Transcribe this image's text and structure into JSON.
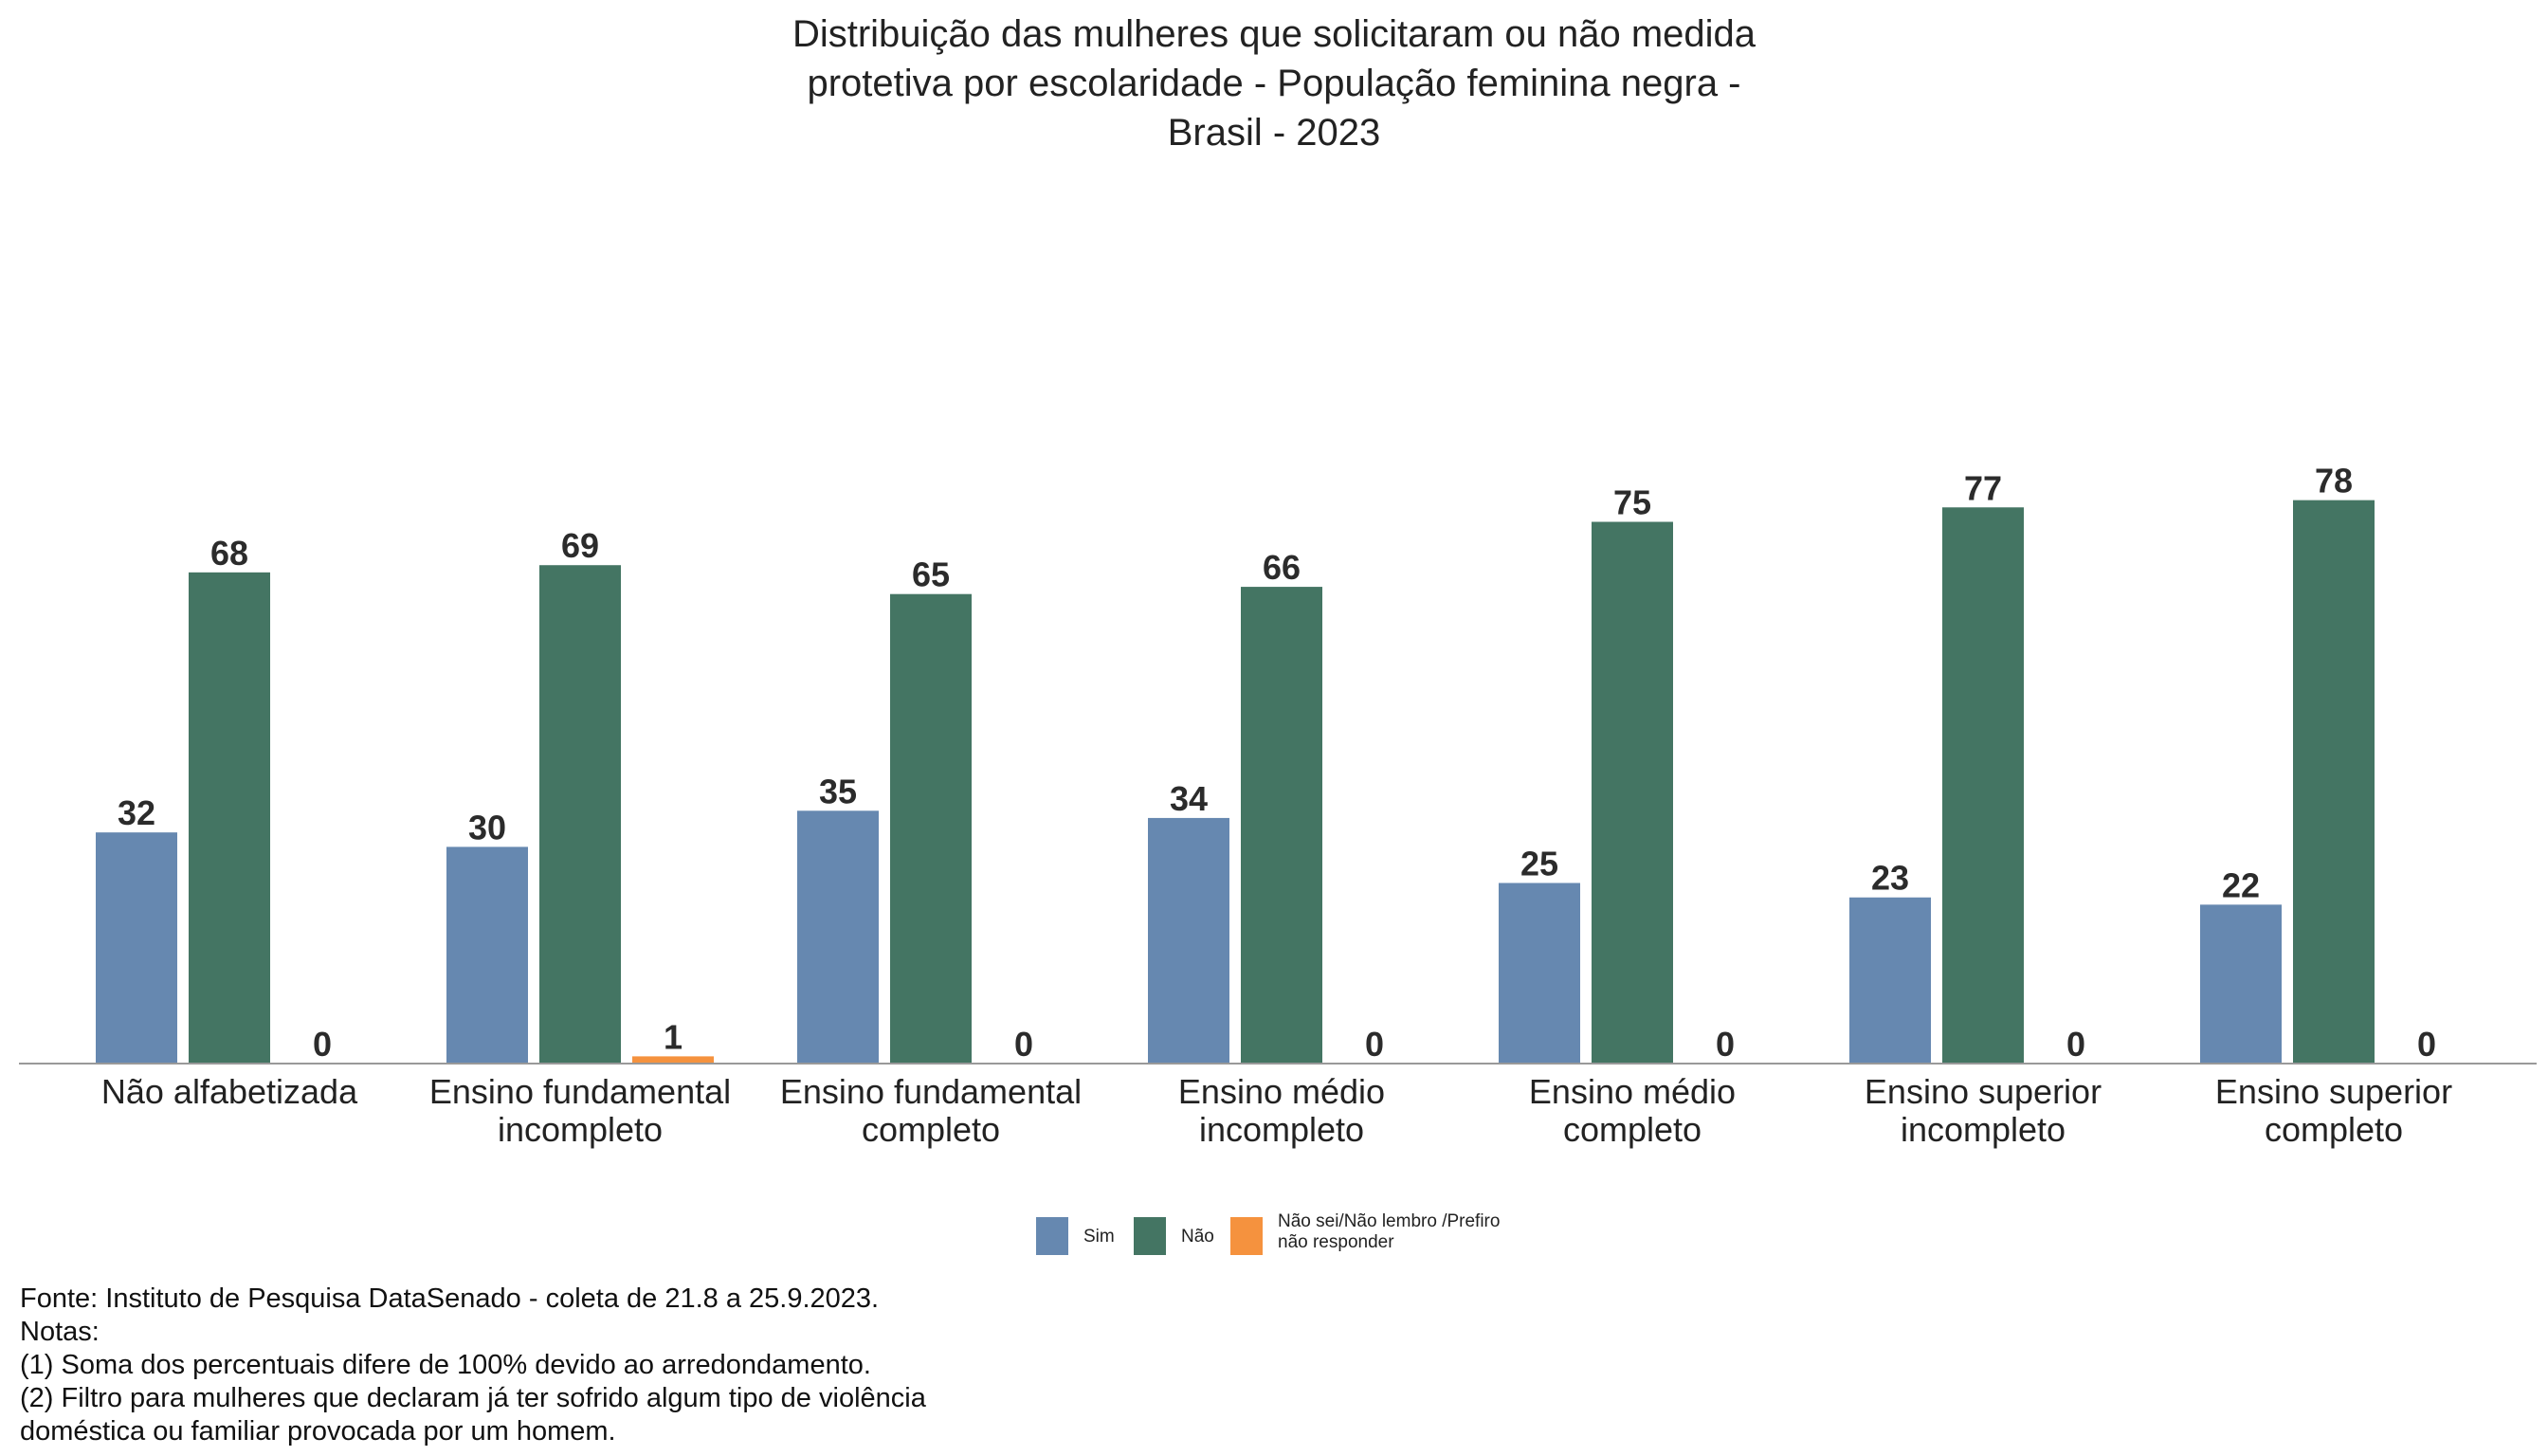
{
  "title_lines": [
    "Distribuição das mulheres que solicitaram ou não medida",
    "protetiva por escolaridade - População feminina negra -",
    "Brasil - 2023"
  ],
  "chart_data": {
    "type": "bar",
    "title": "Distribuição das mulheres que solicitaram ou não medida protetiva por escolaridade - População feminina negra - Brasil - 2023",
    "categories": [
      [
        "Não alfabetizada"
      ],
      [
        "Ensino fundamental",
        "incompleto"
      ],
      [
        "Ensino fundamental",
        "completo"
      ],
      [
        "Ensino médio",
        "incompleto"
      ],
      [
        "Ensino médio",
        "completo"
      ],
      [
        "Ensino superior",
        "incompleto"
      ],
      [
        "Ensino superior",
        "completo"
      ]
    ],
    "series": [
      {
        "name": "Sim",
        "color": "#6688b0",
        "values": [
          32,
          30,
          35,
          34,
          25,
          23,
          22
        ]
      },
      {
        "name": "Não",
        "color": "#447563",
        "values": [
          68,
          69,
          65,
          66,
          75,
          77,
          78
        ]
      },
      {
        "name": "Não sei/Não lembro /Prefiro não responder",
        "color": "#f5923e",
        "values": [
          0,
          1,
          0,
          0,
          0,
          0,
          0
        ]
      }
    ],
    "legend": {
      "position": "bottom",
      "items": [
        {
          "label_lines": [
            "Sim"
          ],
          "color": "#6688b0"
        },
        {
          "label_lines": [
            "Não"
          ],
          "color": "#447563"
        },
        {
          "label_lines": [
            "Não sei/Não lembro /Prefiro",
            "não responder"
          ],
          "color": "#f5923e"
        }
      ]
    },
    "data_labels": true,
    "y_axis_visible": false,
    "grid": false
  },
  "footer_lines": [
    "Fonte: Instituto de Pesquisa DataSenado - coleta de 21.8 a 25.9.2023.",
    "Notas:",
    "(1) Soma dos percentuais difere de 100% devido ao arredondamento.",
    "(2) Filtro para mulheres que declaram já ter sofrido algum tipo de violência",
    "doméstica ou familiar provocada por um homem."
  ]
}
